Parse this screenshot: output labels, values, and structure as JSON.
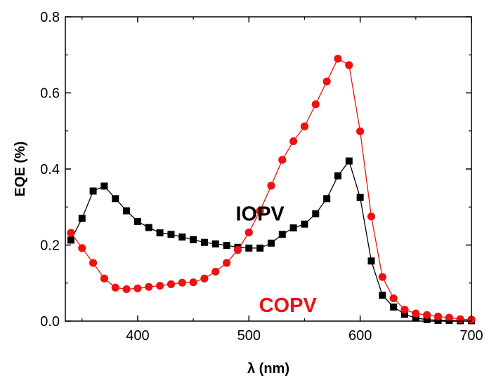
{
  "chart_data": {
    "type": "line",
    "xlabel": "λ (nm)",
    "ylabel": "EQE (%)",
    "xlim": [
      335,
      700
    ],
    "ylim": [
      0.0,
      0.8
    ],
    "xticks": [
      400,
      500,
      600,
      700
    ],
    "yticks": [
      0.0,
      0.2,
      0.4,
      0.6,
      0.8
    ],
    "ytick_labels": [
      "0.0",
      "0.2",
      "0.4",
      "0.6",
      "0.8"
    ],
    "grid": false,
    "legend": "none",
    "series": [
      {
        "name": "IOPV",
        "color": "#000000",
        "marker": "square",
        "x": [
          340,
          350,
          360,
          370,
          380,
          390,
          400,
          410,
          420,
          430,
          440,
          450,
          460,
          470,
          480,
          490,
          500,
          510,
          520,
          530,
          540,
          550,
          560,
          570,
          580,
          590,
          600,
          610,
          620,
          630,
          640,
          650,
          660,
          670,
          680,
          690,
          700
        ],
        "y": [
          0.213,
          0.27,
          0.342,
          0.355,
          0.322,
          0.29,
          0.262,
          0.246,
          0.232,
          0.228,
          0.221,
          0.214,
          0.207,
          0.203,
          0.199,
          0.194,
          0.192,
          0.192,
          0.205,
          0.228,
          0.245,
          0.255,
          0.282,
          0.322,
          0.382,
          0.421,
          0.325,
          0.158,
          0.068,
          0.037,
          0.018,
          0.008,
          0.004,
          0.002,
          0.002,
          0.001,
          0.001
        ]
      },
      {
        "name": "COPV",
        "color": "#ee1111",
        "marker": "circle",
        "x": [
          340,
          350,
          360,
          370,
          380,
          390,
          400,
          410,
          420,
          430,
          440,
          450,
          460,
          470,
          480,
          490,
          500,
          510,
          520,
          530,
          540,
          550,
          560,
          570,
          580,
          590,
          600,
          610,
          620,
          630,
          640,
          650,
          660,
          670,
          680,
          690,
          700
        ],
        "y": [
          0.232,
          0.192,
          0.153,
          0.112,
          0.088,
          0.084,
          0.086,
          0.09,
          0.093,
          0.097,
          0.101,
          0.102,
          0.112,
          0.13,
          0.153,
          0.187,
          0.233,
          0.29,
          0.356,
          0.424,
          0.473,
          0.512,
          0.57,
          0.63,
          0.69,
          0.673,
          0.499,
          0.275,
          0.116,
          0.06,
          0.03,
          0.02,
          0.016,
          0.012,
          0.009,
          0.005,
          0.004
        ]
      }
    ],
    "annotations": [
      {
        "text": "IOPV",
        "color": "#000000",
        "x": 510,
        "y": 0.283
      },
      {
        "text": "COPV",
        "color": "#ee1111",
        "x": 535,
        "y": 0.042
      }
    ]
  }
}
